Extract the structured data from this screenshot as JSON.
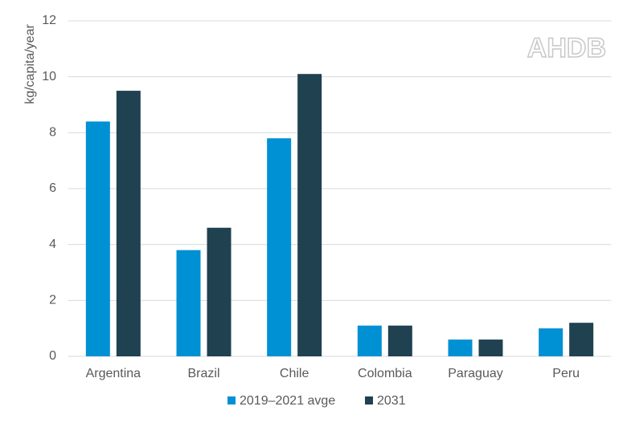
{
  "chart_data": {
    "type": "bar",
    "y_label": "kg/capita/year",
    "logo": "AHDB",
    "categories": [
      "Argentina",
      "Brazil",
      "Chile",
      "Colombia",
      "Paraguay",
      "Peru"
    ],
    "series": [
      {
        "name": "2019–2021 avge",
        "color": "#0090d4",
        "values": [
          8.4,
          3.8,
          7.8,
          1.1,
          0.6,
          1.0
        ]
      },
      {
        "name": "2031",
        "color": "#1f4150",
        "values": [
          9.5,
          4.6,
          10.1,
          1.1,
          0.6,
          1.2
        ]
      }
    ],
    "ylim": [
      0,
      12
    ],
    "yticks": [
      0,
      2,
      4,
      6,
      8,
      10,
      12
    ],
    "grid": true,
    "legend": "bottom"
  }
}
